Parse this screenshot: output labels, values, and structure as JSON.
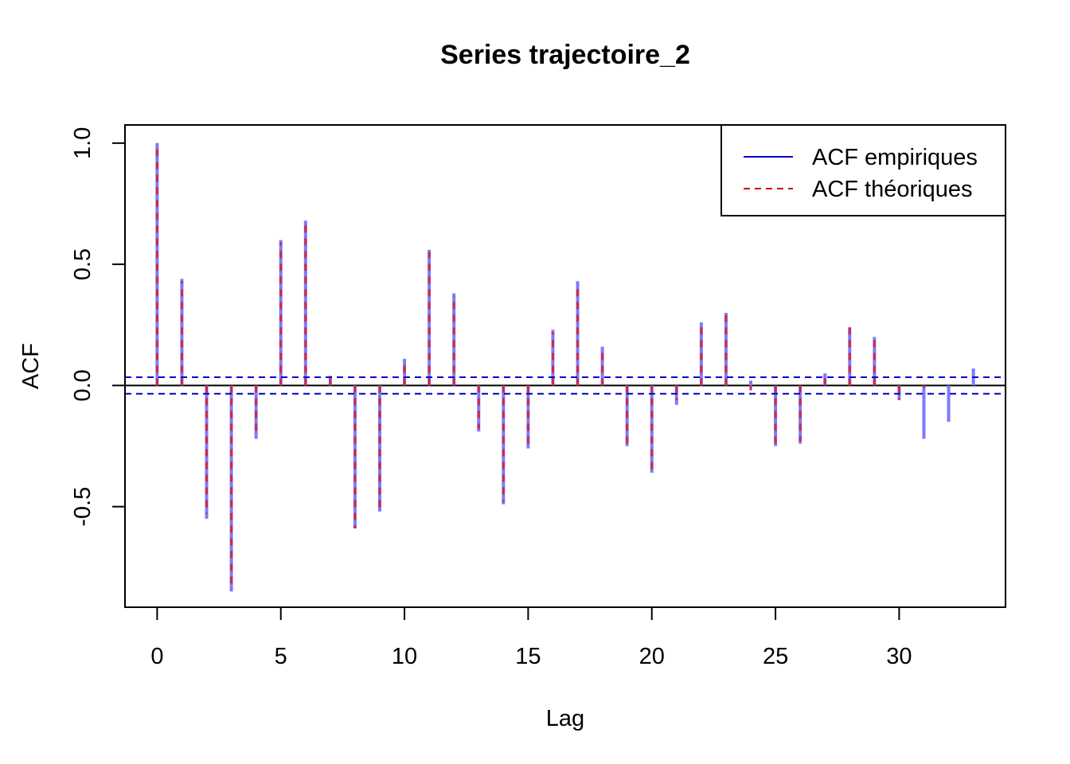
{
  "chart_data": {
    "type": "bar",
    "title": "Series  trajectoire_2",
    "xlabel": "Lag",
    "ylabel": "ACF",
    "xlim": [
      -1.3,
      34.3
    ],
    "ylim": [
      -0.915,
      1.075
    ],
    "x_ticks": [
      0,
      5,
      10,
      15,
      20,
      25,
      30
    ],
    "x_tick_labels": [
      "0",
      "5",
      "10",
      "15",
      "20",
      "25",
      "30"
    ],
    "y_ticks": [
      1.0,
      0.5,
      0.0,
      -0.5
    ],
    "y_tick_labels": [
      "1.0",
      "0.5",
      "0.0",
      "-0.5"
    ],
    "lags": [
      0,
      1,
      2,
      3,
      4,
      5,
      6,
      7,
      8,
      9,
      10,
      11,
      12,
      13,
      14,
      15,
      16,
      17,
      18,
      19,
      20,
      21,
      22,
      23,
      24,
      25,
      26,
      27,
      28,
      29,
      30,
      31,
      32,
      33
    ],
    "series": [
      {
        "name": "ACF empiriques",
        "color": "#7b7bff",
        "style": "solid",
        "values": [
          1.0,
          0.44,
          -0.55,
          -0.85,
          -0.22,
          0.6,
          0.68,
          0.04,
          -0.59,
          -0.52,
          0.11,
          0.56,
          0.38,
          -0.19,
          -0.49,
          -0.26,
          0.23,
          0.43,
          0.16,
          -0.25,
          -0.36,
          -0.08,
          0.26,
          0.3,
          0.02,
          -0.25,
          -0.24,
          0.05,
          0.24,
          0.2,
          -0.06,
          -0.22,
          -0.15,
          0.07
        ]
      },
      {
        "name": "ACF théoriques",
        "color": "#cc2a4a",
        "style": "dashed",
        "values": [
          1.0,
          0.43,
          -0.53,
          -0.84,
          -0.21,
          0.59,
          0.68,
          0.05,
          -0.59,
          -0.51,
          0.09,
          0.55,
          0.37,
          -0.18,
          -0.48,
          -0.24,
          0.22,
          0.42,
          0.15,
          -0.25,
          -0.35,
          -0.06,
          0.25,
          0.29,
          -0.02,
          -0.25,
          -0.23,
          0.05,
          0.24,
          0.19,
          -0.06,
          -0.01,
          0.0,
          0.0
        ]
      }
    ],
    "confidence_bounds": [
      0.034,
      -0.034
    ],
    "bounds_color": "#0000cc",
    "legend": {
      "position": "top-right",
      "entries": [
        {
          "label": "ACF empiriques",
          "color": "#0000cc",
          "style": "solid"
        },
        {
          "label": "ACF théoriques",
          "color": "#cc0000",
          "style": "dashed"
        }
      ]
    },
    "grid": false
  }
}
